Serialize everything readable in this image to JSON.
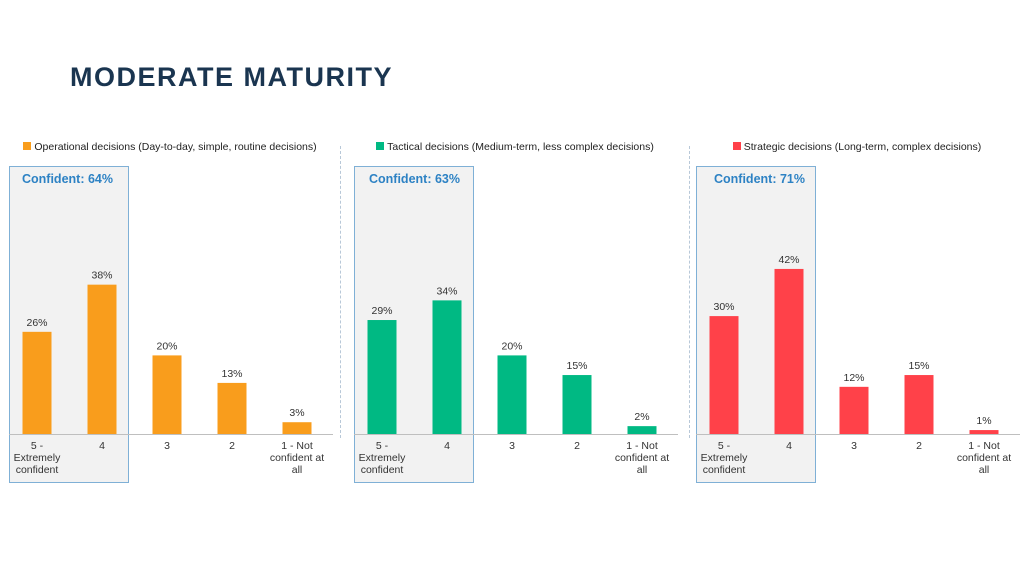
{
  "page": {
    "title": "MODERATE MATURITY"
  },
  "chart_data": [
    {
      "type": "bar",
      "legend": "Operational decisions (Day-to-day, simple, routine decisions)",
      "color": "#f99d1c",
      "confident_label": "Confident: 64%",
      "categories": [
        "5 - Extremely confident",
        "4",
        "3",
        "2",
        "1 - Not confident at all"
      ],
      "values": [
        26,
        38,
        20,
        13,
        3
      ],
      "value_labels": [
        "26%",
        "38%",
        "20%",
        "13%",
        "3%"
      ]
    },
    {
      "type": "bar",
      "legend": "Tactical decisions (Medium-term, less complex decisions)",
      "color": "#00b983",
      "confident_label": "Confident: 63%",
      "categories": [
        "5 - Extremely confident",
        "4",
        "3",
        "2",
        "1 - Not confident at all"
      ],
      "values": [
        29,
        34,
        20,
        15,
        2
      ],
      "value_labels": [
        "29%",
        "34%",
        "20%",
        "15%",
        "2%"
      ]
    },
    {
      "type": "bar",
      "legend": "Strategic decisions (Long-term, complex decisions)",
      "color": "#ff4149",
      "confident_label": "Confident: 71%",
      "categories": [
        "5 - Extremely confident",
        "4",
        "3",
        "2",
        "1 - Not confident at all"
      ],
      "values": [
        30,
        42,
        12,
        15,
        1
      ],
      "value_labels": [
        "30%",
        "42%",
        "12%",
        "15%",
        "1%"
      ]
    }
  ]
}
